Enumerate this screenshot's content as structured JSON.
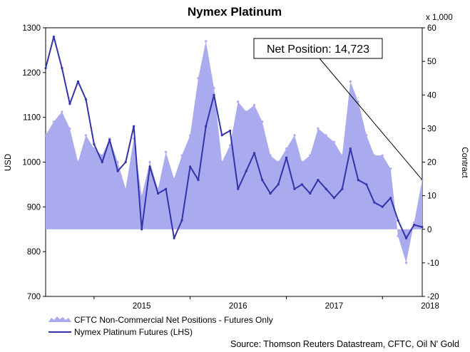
{
  "chart_data": {
    "type": "line",
    "title": "Nymex Platinum",
    "x_range": [
      "2014-07-01",
      "2018-06-01"
    ],
    "x_ticks": [
      "2015",
      "2016",
      "2017",
      "2018"
    ],
    "left_axis": {
      "label": "USD",
      "ylim": [
        700,
        1300
      ],
      "ticks": [
        "700",
        "800",
        "900",
        "1000",
        "1100",
        "1200",
        "1300"
      ]
    },
    "right_axis": {
      "label": "Contract",
      "unit_label": "x 1,000",
      "ylim": [
        -20,
        60
      ],
      "ticks": [
        "-20",
        "-10",
        "0",
        "10",
        "20",
        "30",
        "40",
        "50",
        "60"
      ]
    },
    "series": [
      {
        "name": "CFTC Non-Commercial Net Positions - Futures Only",
        "type": "area",
        "axis": "right",
        "color": "#aaaaee",
        "points": [
          [
            "2014-07-01",
            28
          ],
          [
            "2014-08-01",
            32
          ],
          [
            "2014-09-01",
            35
          ],
          [
            "2014-10-01",
            30
          ],
          [
            "2014-11-01",
            20
          ],
          [
            "2014-12-01",
            28
          ],
          [
            "2015-01-01",
            24
          ],
          [
            "2015-02-01",
            22
          ],
          [
            "2015-03-01",
            27
          ],
          [
            "2015-04-01",
            20
          ],
          [
            "2015-05-01",
            12
          ],
          [
            "2015-06-01",
            27
          ],
          [
            "2015-07-01",
            10
          ],
          [
            "2015-08-01",
            20
          ],
          [
            "2015-09-01",
            12
          ],
          [
            "2015-10-01",
            23
          ],
          [
            "2015-11-01",
            15
          ],
          [
            "2015-12-01",
            22
          ],
          [
            "2016-01-01",
            28
          ],
          [
            "2016-02-01",
            45
          ],
          [
            "2016-03-01",
            56
          ],
          [
            "2016-04-01",
            42
          ],
          [
            "2016-05-01",
            20
          ],
          [
            "2016-06-01",
            25
          ],
          [
            "2016-07-01",
            38
          ],
          [
            "2016-08-01",
            35
          ],
          [
            "2016-09-01",
            37
          ],
          [
            "2016-10-01",
            32
          ],
          [
            "2016-11-01",
            22
          ],
          [
            "2016-12-01",
            20
          ],
          [
            "2017-01-01",
            24
          ],
          [
            "2017-02-01",
            28
          ],
          [
            "2017-03-01",
            20
          ],
          [
            "2017-04-01",
            22
          ],
          [
            "2017-05-01",
            30
          ],
          [
            "2017-06-01",
            28
          ],
          [
            "2017-07-01",
            26
          ],
          [
            "2017-08-01",
            22
          ],
          [
            "2017-09-01",
            44
          ],
          [
            "2017-10-01",
            38
          ],
          [
            "2017-11-01",
            28
          ],
          [
            "2017-12-01",
            22
          ],
          [
            "2018-01-01",
            22
          ],
          [
            "2018-02-01",
            18
          ],
          [
            "2018-03-01",
            -2
          ],
          [
            "2018-04-01",
            -10
          ],
          [
            "2018-05-01",
            2
          ],
          [
            "2018-06-01",
            14.723
          ]
        ]
      },
      {
        "name": "Nymex Platinum Futures (LHS)",
        "type": "line",
        "axis": "left",
        "color": "#3333aa",
        "points": [
          [
            "2014-07-01",
            1210
          ],
          [
            "2014-08-01",
            1280
          ],
          [
            "2014-09-01",
            1210
          ],
          [
            "2014-10-01",
            1130
          ],
          [
            "2014-11-01",
            1180
          ],
          [
            "2014-12-01",
            1140
          ],
          [
            "2015-01-01",
            1040
          ],
          [
            "2015-02-01",
            1000
          ],
          [
            "2015-03-01",
            1050
          ],
          [
            "2015-04-01",
            980
          ],
          [
            "2015-05-01",
            1000
          ],
          [
            "2015-06-01",
            1080
          ],
          [
            "2015-07-01",
            850
          ],
          [
            "2015-08-01",
            990
          ],
          [
            "2015-09-01",
            930
          ],
          [
            "2015-10-01",
            940
          ],
          [
            "2015-11-01",
            830
          ],
          [
            "2015-12-01",
            870
          ],
          [
            "2016-01-01",
            990
          ],
          [
            "2016-02-01",
            960
          ],
          [
            "2016-03-01",
            1080
          ],
          [
            "2016-04-01",
            1150
          ],
          [
            "2016-05-01",
            1060
          ],
          [
            "2016-06-01",
            1070
          ],
          [
            "2016-07-01",
            940
          ],
          [
            "2016-08-01",
            980
          ],
          [
            "2016-09-01",
            1020
          ],
          [
            "2016-10-01",
            960
          ],
          [
            "2016-11-01",
            930
          ],
          [
            "2016-12-01",
            950
          ],
          [
            "2017-01-01",
            1010
          ],
          [
            "2017-02-01",
            940
          ],
          [
            "2017-03-01",
            950
          ],
          [
            "2017-04-01",
            930
          ],
          [
            "2017-05-01",
            960
          ],
          [
            "2017-06-01",
            940
          ],
          [
            "2017-07-01",
            920
          ],
          [
            "2017-08-01",
            940
          ],
          [
            "2017-09-01",
            1030
          ],
          [
            "2017-10-01",
            960
          ],
          [
            "2017-11-01",
            950
          ],
          [
            "2017-12-01",
            910
          ],
          [
            "2018-01-01",
            900
          ],
          [
            "2018-02-01",
            920
          ],
          [
            "2018-03-01",
            870
          ],
          [
            "2018-04-01",
            830
          ],
          [
            "2018-05-01",
            860
          ],
          [
            "2018-06-01",
            855
          ]
        ]
      }
    ],
    "annotation": {
      "text": "Net Position: 14,723",
      "points_to": [
        "2018-06-01",
        14.723
      ]
    },
    "legend": {
      "placement": "bottom-left",
      "items": [
        {
          "label": "CFTC Non-Commercial Net Positions - Futures Only",
          "kind": "area",
          "color": "#aaaaee"
        },
        {
          "label": "Nymex Platinum Futures (LHS)",
          "kind": "line",
          "color": "#3333aa"
        }
      ]
    },
    "source": "Source: Thomson Reuters Datastream, CFTC, Oil N' Gold",
    "grid": false
  }
}
